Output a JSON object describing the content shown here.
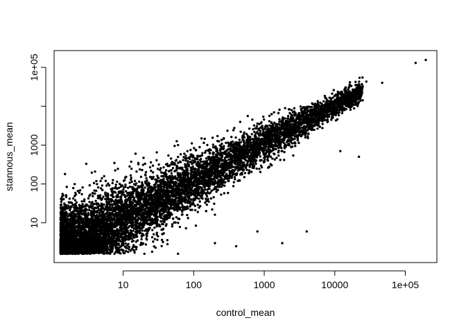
{
  "chart_data": {
    "type": "scatter",
    "title": "",
    "xlabel": "control_mean",
    "ylabel": "stannous_mean",
    "xscale": "log",
    "yscale": "log",
    "xlim": [
      1.05,
      280000
    ],
    "ylim": [
      0.95,
      270000
    ],
    "grid": false,
    "legend": "none",
    "point_color": "#000000",
    "x_ticks": [
      {
        "value": 10,
        "label": "10"
      },
      {
        "value": 100,
        "label": "100"
      },
      {
        "value": 1000,
        "label": "1000"
      },
      {
        "value": 10000,
        "label": "10000"
      },
      {
        "value": 100000,
        "label": "1e+05"
      }
    ],
    "y_ticks": [
      {
        "value": 10,
        "label": "10"
      },
      {
        "value": 100,
        "label": "100"
      },
      {
        "value": 1000,
        "label": "1000"
      },
      {
        "value": 10000,
        "label": ""
      },
      {
        "value": 100000,
        "label": "1e+05"
      }
    ],
    "series": [
      {
        "values": [
          [
            140000,
            130000
          ],
          [
            195000,
            155000
          ],
          [
            47000,
            40000
          ],
          [
            28000,
            43000
          ],
          [
            20000,
            35000
          ],
          [
            16000,
            24000
          ],
          [
            13000,
            20000
          ],
          [
            22000,
            500
          ],
          [
            9000,
            7200
          ],
          [
            6500,
            6000
          ],
          [
            3000,
            2800
          ],
          [
            1500,
            1300
          ],
          [
            12000,
            700
          ],
          [
            800,
            6
          ],
          [
            1800,
            3
          ],
          [
            4000,
            6
          ],
          [
            1.5,
            180
          ],
          [
            3,
            330
          ],
          [
            5,
            140
          ],
          [
            15,
            600
          ],
          [
            30,
            650
          ],
          [
            60,
            1000
          ],
          [
            1.3,
            3.5
          ],
          [
            2,
            2
          ],
          [
            5,
            1.8
          ],
          [
            20,
            1.6
          ],
          [
            60,
            1.6
          ],
          [
            200,
            3
          ],
          [
            400,
            2.5
          ],
          [
            150,
            20
          ]
        ]
      }
    ]
  }
}
